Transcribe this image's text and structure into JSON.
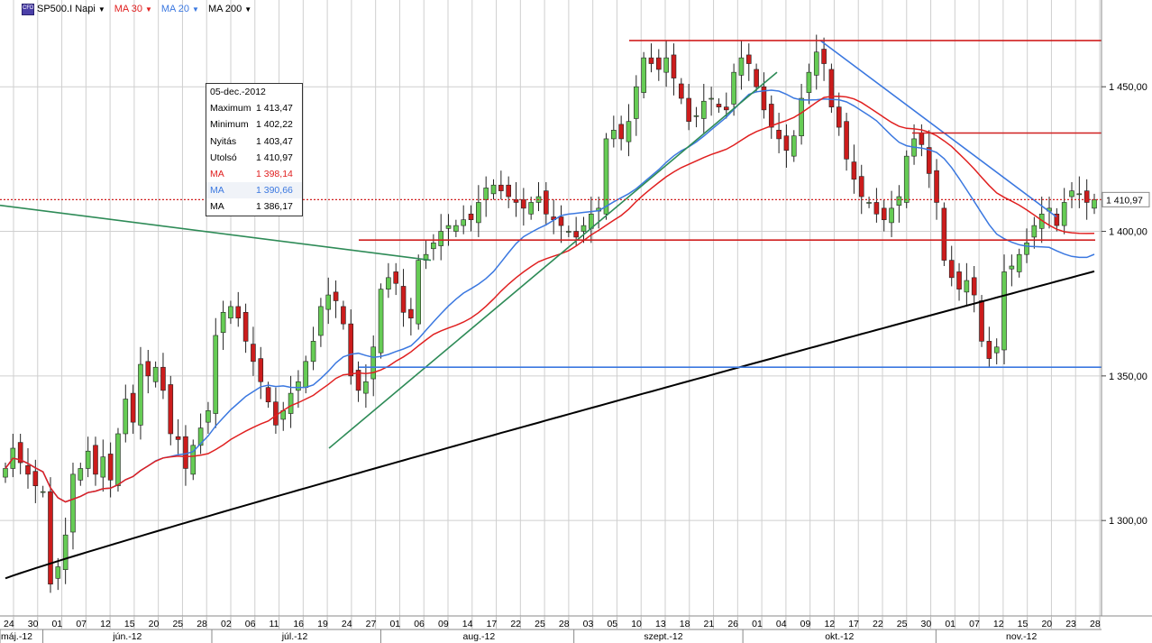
{
  "toolbar": {
    "symbol": "SP500.I Napi",
    "ma_labels": [
      "MA 30",
      "MA 20",
      "MA 200"
    ],
    "ma_colors": [
      "#e02020",
      "#3b78e0",
      "#000000"
    ]
  },
  "info_box": {
    "date": "05-dec.-2012",
    "rows": [
      {
        "label": "Maximum",
        "value": "1 413,47",
        "color": "#000000"
      },
      {
        "label": "Minimum",
        "value": "1 402,22",
        "color": "#000000"
      },
      {
        "label": "Nyitás",
        "value": "1 403,47",
        "color": "#000000"
      },
      {
        "label": "Utolsó",
        "value": "1 410,97",
        "color": "#000000"
      },
      {
        "label": "MA",
        "value": "1 398,14",
        "color": "#e02020"
      },
      {
        "label": "MA",
        "value": "1 390,66",
        "color": "#3b78e0"
      },
      {
        "label": "MA",
        "value": "1 386,17",
        "color": "#000000"
      }
    ]
  },
  "chart_data": {
    "type": "candlestick",
    "y_ticks": [
      "1 300,00",
      "1 350,00",
      "1 400,00",
      "1 450,00"
    ],
    "y_tick_values": [
      1300,
      1350,
      1400,
      1450
    ],
    "ylim": [
      1267,
      1480
    ],
    "last_price_label": "1 410,97",
    "last_price": 1410.97,
    "day_labels": [
      "24",
      "30",
      "01",
      "07",
      "12",
      "15",
      "20",
      "25",
      "28",
      "02",
      "06",
      "11",
      "16",
      "19",
      "24",
      "27",
      "01",
      "06",
      "09",
      "14",
      "17",
      "22",
      "25",
      "28",
      "03",
      "05",
      "10",
      "13",
      "18",
      "21",
      "26",
      "01",
      "04",
      "09",
      "12",
      "17",
      "22",
      "25",
      "30",
      "01",
      "07",
      "12",
      "15",
      "20",
      "23",
      "28"
    ],
    "months": [
      {
        "label": "máj.-12",
        "start": 0,
        "end": 2
      },
      {
        "label": "jún.-12",
        "start": 2,
        "end": 9
      },
      {
        "label": "júl.-12",
        "start": 9,
        "end": 16
      },
      {
        "label": "aug.-12",
        "start": 16,
        "end": 24
      },
      {
        "label": "szept.-12",
        "start": 24,
        "end": 31
      },
      {
        "label": "okt.-12",
        "start": 31,
        "end": 39
      },
      {
        "label": "nov.-12",
        "start": 39,
        "end": 46
      }
    ],
    "closes": [
      1318,
      1325,
      1320,
      1316,
      1312,
      1310,
      1278,
      1284,
      1295,
      1316,
      1318,
      1324,
      1316,
      1322,
      1314,
      1330,
      1342,
      1334,
      1354,
      1350,
      1353,
      1345,
      1330,
      1328,
      1318,
      1326,
      1332,
      1338,
      1364,
      1372,
      1374,
      1370,
      1362,
      1355,
      1348,
      1341,
      1333,
      1338,
      1344,
      1348,
      1355,
      1362,
      1374,
      1378,
      1376,
      1368,
      1350,
      1345,
      1348,
      1360,
      1380,
      1384,
      1382,
      1372,
      1370,
      1390,
      1392,
      1396,
      1400,
      1402,
      1402,
      1404,
      1404,
      1410,
      1415,
      1416,
      1414,
      1412,
      1410,
      1408,
      1410,
      1412,
      1406,
      1404,
      1402,
      1400,
      1398,
      1402,
      1406,
      1408,
      1432,
      1435,
      1432,
      1438,
      1450,
      1460,
      1458,
      1456,
      1460,
      1453,
      1446,
      1438,
      1440,
      1445,
      1446,
      1443,
      1442,
      1455,
      1460,
      1458,
      1450,
      1442,
      1436,
      1432,
      1428,
      1433,
      1446,
      1455,
      1462,
      1458,
      1443,
      1436,
      1425,
      1418,
      1412,
      1410,
      1406,
      1404,
      1408,
      1412,
      1426,
      1432,
      1430,
      1420,
      1410,
      1390,
      1384,
      1380,
      1383,
      1378,
      1362,
      1356,
      1360,
      1386,
      1388,
      1392,
      1396,
      1402,
      1406,
      1408,
      1402,
      1410,
      1414,
      1413,
      1410,
      1411
    ],
    "ma30_end": 1398.14,
    "ma20_end": 1390.66,
    "ma200_end": 1386.17
  }
}
